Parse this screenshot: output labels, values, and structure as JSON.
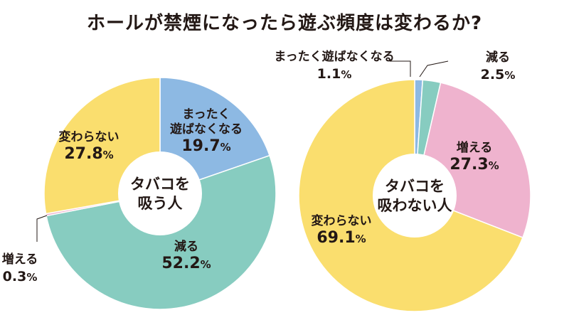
{
  "title": "ホールが禁煙になったら遊ぶ頻度は変わるか?",
  "chart_data": [
    {
      "type": "pie",
      "center_label": [
        "タバコを",
        "吸う人"
      ],
      "slices": [
        {
          "name": "まったく遊ばなくなる",
          "name_lines": [
            "まったく",
            "遊ばなくなる"
          ],
          "value": 19.7,
          "label": "19.7%",
          "color": "#8DB9E3"
        },
        {
          "name": "減る",
          "name_lines": [
            "減る"
          ],
          "value": 52.2,
          "label": "52.2%",
          "color": "#87CCC0"
        },
        {
          "name": "増える",
          "name_lines": [
            "増える"
          ],
          "value": 0.3,
          "label": "0.3%",
          "color": "#EFB3CE"
        },
        {
          "name": "変わらない",
          "name_lines": [
            "変わらない"
          ],
          "value": 27.8,
          "label": "27.8%",
          "color": "#FADE6E"
        }
      ]
    },
    {
      "type": "pie",
      "center_label": [
        "タバコを",
        "吸わない人"
      ],
      "slices": [
        {
          "name": "まったく遊ばなくなる",
          "name_lines": [
            "まったく遊ばなくなる"
          ],
          "value": 1.1,
          "label": "1.1%",
          "color": "#8DB9E3"
        },
        {
          "name": "減る",
          "name_lines": [
            "減る"
          ],
          "value": 2.5,
          "label": "2.5%",
          "color": "#87CCC0"
        },
        {
          "name": "増える",
          "name_lines": [
            "増える"
          ],
          "value": 27.3,
          "label": "27.3%",
          "color": "#EFB3CE"
        },
        {
          "name": "変わらない",
          "name_lines": [
            "変わらない"
          ],
          "value": 69.1,
          "label": "69.1%",
          "color": "#FADE6E"
        }
      ]
    }
  ]
}
